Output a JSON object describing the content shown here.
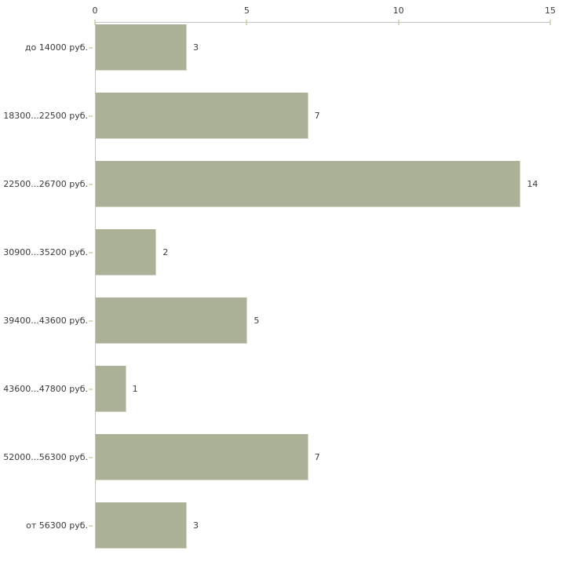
{
  "chart_data": {
    "type": "bar",
    "orientation": "horizontal",
    "title": "",
    "xlabel": "",
    "ylabel": "",
    "categories": [
      "до 14000 руб.",
      "18300...22500 руб.",
      "22500...26700 руб.",
      "30900...35200 руб.",
      "39400...43600 руб.",
      "43600...47800 руб.",
      "52000...56300 руб.",
      "от 56300 руб."
    ],
    "values": [
      3,
      7,
      14,
      2,
      5,
      1,
      7,
      3
    ],
    "xticks": [
      0,
      5,
      10,
      15
    ],
    "xlim": [
      0,
      15
    ],
    "grid": false,
    "legend": false,
    "axis_position": "top",
    "colors": {
      "bar_fill": "#abb196",
      "bar_border": "#d4d7c6",
      "axis_line": "#c2c2c2",
      "tick_mark": "#d9dcb3",
      "text": "#3a3a3a",
      "background": "#ffffff"
    }
  }
}
